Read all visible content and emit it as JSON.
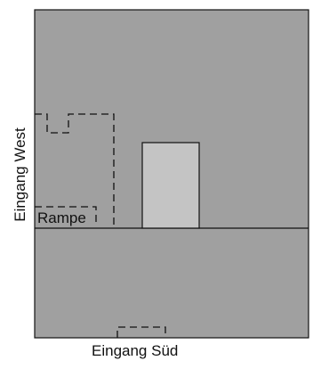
{
  "labels": {
    "west": "Eingang West",
    "sued": "Eingang Süd",
    "rampe": "Rampe"
  },
  "colors": {
    "floor": "#a0a0a0",
    "block": "#c4c4c4",
    "line": "#111111"
  }
}
